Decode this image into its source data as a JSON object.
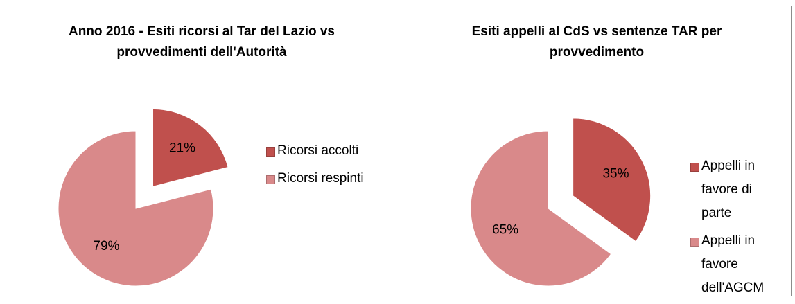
{
  "chart_data": [
    {
      "type": "pie",
      "title": "Anno 2016 - Esiti ricorsi al Tar del Lazio vs provvedimenti dell'Autorità",
      "categories": [
        "Ricorsi accolti",
        "Ricorsi respinti"
      ],
      "values": [
        21,
        79
      ],
      "value_labels": [
        "21%",
        "79%"
      ],
      "colors": [
        "#c0504d",
        "#d9898a"
      ],
      "legend": "right"
    },
    {
      "type": "pie",
      "title": "Esiti appelli al CdS vs sentenze TAR per provvedimento",
      "categories": [
        "Appelli in favore di parte",
        "Appelli in favore dell'AGCM"
      ],
      "values": [
        35,
        65
      ],
      "value_labels": [
        "35%",
        "65%"
      ],
      "colors": [
        "#c0504d",
        "#d9898a"
      ],
      "legend": "right"
    }
  ]
}
